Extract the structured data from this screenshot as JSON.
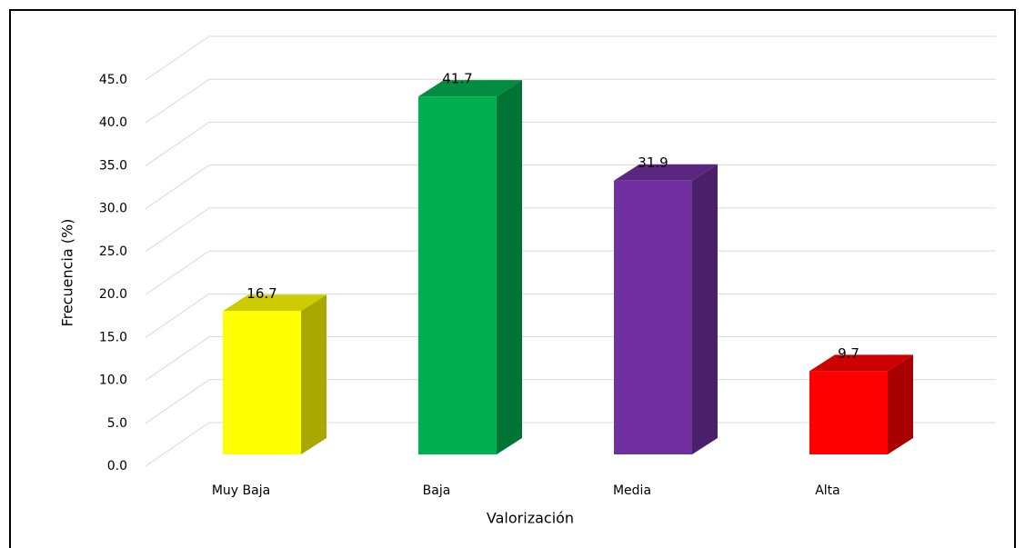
{
  "chart_data": {
    "type": "bar3d",
    "x_label": "Valorización",
    "y_label": "Frecuencia (%)",
    "categories": [
      "Muy Baja",
      "Baja",
      "Media",
      "Alta"
    ],
    "values": [
      16.7,
      41.7,
      31.9,
      9.7
    ],
    "colors": [
      "#ffff00",
      "#00b050",
      "#7030a0",
      "#ff0000"
    ],
    "ylim": [
      0,
      45
    ],
    "yticks": [
      {
        "value": 0,
        "label": "0.0"
      },
      {
        "value": 5,
        "label": "5.0"
      },
      {
        "value": 10,
        "label": "10.0"
      },
      {
        "value": 15,
        "label": "15.0"
      },
      {
        "value": 20,
        "label": "20.0"
      },
      {
        "value": 25,
        "label": "25.0"
      },
      {
        "value": 30,
        "label": "30.0"
      },
      {
        "value": 35,
        "label": "35.0"
      },
      {
        "value": 40,
        "label": "40.0"
      },
      {
        "value": 45,
        "label": "45.0"
      }
    ],
    "grid": true
  }
}
